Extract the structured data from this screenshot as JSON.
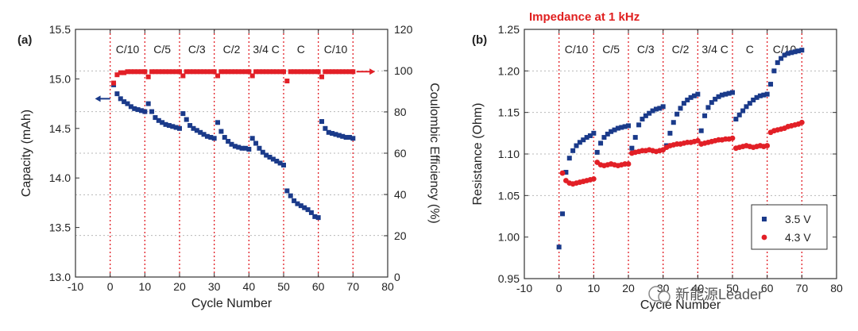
{
  "chart_data": [
    {
      "panel": "(a)",
      "type": "scatter",
      "xlabel": "Cycle Number",
      "ylabel": "Capacity (mAh)",
      "y2label": "Coulombic Efficiency (%)",
      "xlim": [
        -10,
        80
      ],
      "ylim": [
        13.0,
        15.5
      ],
      "y2lim": [
        0,
        120
      ],
      "xticks": [
        "-10",
        "0",
        "10",
        "20",
        "30",
        "40",
        "50",
        "60",
        "70",
        "80"
      ],
      "yticks": [
        "13.0",
        "13.5",
        "14.0",
        "14.5",
        "15.0",
        "15.5"
      ],
      "y2ticks": [
        "0",
        "20",
        "40",
        "60",
        "80",
        "100",
        "120"
      ],
      "grid_y": [
        13.42,
        13.83,
        14.25,
        14.67,
        15.08
      ],
      "regions": [
        "C/10",
        "C/5",
        "C/3",
        "C/2",
        "3/4 C",
        "C",
        "C/10"
      ],
      "region_bounds": [
        0,
        10,
        20,
        30,
        40,
        50,
        60,
        70
      ],
      "colors": {
        "capacity": "#1a3a8a",
        "efficiency": "#e21f26",
        "dotline": "#e21f26"
      },
      "series": [
        {
          "axis": "left",
          "x": [
            1,
            2,
            3,
            4,
            5,
            6,
            7,
            8,
            9,
            10,
            11,
            12,
            13,
            14,
            15,
            16,
            17,
            18,
            19,
            20,
            21,
            22,
            23,
            24,
            25,
            26,
            27,
            28,
            29,
            30,
            31,
            32,
            33,
            34,
            35,
            36,
            37,
            38,
            39,
            40,
            41,
            42,
            43,
            44,
            45,
            46,
            47,
            48,
            49,
            50,
            51,
            52,
            53,
            54,
            55,
            56,
            57,
            58,
            59,
            60,
            61,
            62,
            63,
            64,
            65,
            66,
            67,
            68,
            69,
            70
          ],
          "values": [
            14.94,
            14.85,
            14.8,
            14.77,
            14.75,
            14.72,
            14.7,
            14.69,
            14.68,
            14.67,
            14.75,
            14.67,
            14.61,
            14.58,
            14.56,
            14.54,
            14.53,
            14.52,
            14.51,
            14.5,
            14.65,
            14.59,
            14.53,
            14.5,
            14.48,
            14.46,
            14.44,
            14.42,
            14.41,
            14.4,
            14.56,
            14.47,
            14.41,
            14.37,
            14.34,
            14.32,
            14.31,
            14.3,
            14.3,
            14.29,
            14.4,
            14.35,
            14.3,
            14.26,
            14.23,
            14.21,
            14.19,
            14.17,
            14.15,
            14.13,
            13.87,
            13.82,
            13.77,
            13.74,
            13.72,
            13.7,
            13.68,
            13.65,
            13.61,
            13.6,
            14.57,
            14.5,
            14.46,
            14.45,
            14.44,
            14.43,
            14.42,
            14.41,
            14.41,
            14.4
          ]
        },
        {
          "axis": "right",
          "x": [
            1,
            2,
            3,
            4,
            5,
            6,
            7,
            8,
            9,
            10,
            11,
            12,
            13,
            14,
            15,
            16,
            17,
            18,
            19,
            20,
            21,
            22,
            23,
            24,
            25,
            26,
            27,
            28,
            29,
            30,
            31,
            32,
            33,
            34,
            35,
            36,
            37,
            38,
            39,
            40,
            41,
            42,
            43,
            44,
            45,
            46,
            47,
            48,
            49,
            50,
            51,
            52,
            53,
            54,
            55,
            56,
            57,
            58,
            59,
            60,
            61,
            62,
            63,
            64,
            65,
            66,
            67,
            68,
            69,
            70
          ],
          "values": [
            94,
            98,
            99,
            99,
            99.5,
            99.5,
            99.5,
            99.5,
            99.5,
            99.5,
            97,
            99.5,
            99.5,
            99.5,
            99.5,
            99.5,
            99.5,
            99.5,
            99.5,
            99.5,
            97.5,
            99.5,
            99.5,
            99.5,
            99.5,
            99.5,
            99.5,
            99.5,
            99.5,
            99.5,
            97.5,
            99.5,
            99.5,
            99.5,
            99.5,
            99.5,
            99.5,
            99.5,
            99.5,
            99.5,
            97.5,
            99.5,
            99.5,
            99.5,
            99.5,
            99.5,
            99.5,
            99.5,
            99.5,
            99.5,
            95,
            99.5,
            99.5,
            99.5,
            99.5,
            99.5,
            99.5,
            99.5,
            99.5,
            99.5,
            97,
            99.5,
            99.5,
            99.5,
            99.5,
            99.5,
            99.5,
            99.5,
            99.5,
            99.5
          ]
        }
      ]
    },
    {
      "panel": "(b)",
      "type": "scatter",
      "title": "Impedance at 1 kHz",
      "xlabel": "Cycle Number",
      "ylabel": "Resistance (Ohm)",
      "xlim": [
        -10,
        80
      ],
      "ylim": [
        0.95,
        1.25
      ],
      "xticks": [
        "-10",
        "0",
        "10",
        "20",
        "30",
        "40",
        "50",
        "60",
        "70",
        "80"
      ],
      "yticks": [
        "0.95",
        "1.00",
        "1.05",
        "1.10",
        "1.15",
        "1.20",
        "1.25"
      ],
      "grid_y": [
        1.05,
        1.1,
        1.15,
        1.2
      ],
      "regions": [
        "C/10",
        "C/5",
        "C/3",
        "C/2",
        "3/4 C",
        "C",
        "C/10"
      ],
      "region_bounds": [
        0,
        10,
        20,
        30,
        40,
        50,
        60,
        70
      ],
      "legend_position": "bottom-right",
      "colors": {
        "s35": "#1a3a8a",
        "s43": "#e21f26",
        "dotline": "#e21f26"
      },
      "series": [
        {
          "name": "3.5 V",
          "x": [
            0,
            1,
            2,
            3,
            4,
            5,
            6,
            7,
            8,
            9,
            10,
            11,
            12,
            13,
            14,
            15,
            16,
            17,
            18,
            19,
            20,
            21,
            22,
            23,
            24,
            25,
            26,
            27,
            28,
            29,
            30,
            31,
            32,
            33,
            34,
            35,
            36,
            37,
            38,
            39,
            40,
            41,
            42,
            43,
            44,
            45,
            46,
            47,
            48,
            49,
            50,
            51,
            52,
            53,
            54,
            55,
            56,
            57,
            58,
            59,
            60,
            61,
            62,
            63,
            64,
            65,
            66,
            67,
            68,
            69,
            70
          ],
          "values": [
            0.988,
            1.028,
            1.078,
            1.095,
            1.104,
            1.11,
            1.114,
            1.117,
            1.12,
            1.122,
            1.125,
            1.102,
            1.113,
            1.12,
            1.124,
            1.127,
            1.129,
            1.131,
            1.132,
            1.133,
            1.134,
            1.107,
            1.12,
            1.135,
            1.142,
            1.146,
            1.149,
            1.152,
            1.154,
            1.155,
            1.157,
            1.11,
            1.125,
            1.138,
            1.148,
            1.155,
            1.161,
            1.165,
            1.168,
            1.17,
            1.172,
            1.128,
            1.146,
            1.156,
            1.162,
            1.166,
            1.169,
            1.171,
            1.172,
            1.173,
            1.174,
            1.142,
            1.147,
            1.152,
            1.157,
            1.161,
            1.165,
            1.168,
            1.17,
            1.171,
            1.172,
            1.184,
            1.2,
            1.21,
            1.215,
            1.219,
            1.221,
            1.222,
            1.223,
            1.224,
            1.225
          ]
        },
        {
          "name": "4.3 V",
          "x": [
            1,
            2,
            3,
            4,
            5,
            6,
            7,
            8,
            9,
            10,
            11,
            12,
            13,
            14,
            15,
            16,
            17,
            18,
            19,
            20,
            21,
            22,
            23,
            24,
            25,
            26,
            27,
            28,
            29,
            30,
            31,
            32,
            33,
            34,
            35,
            36,
            37,
            38,
            39,
            40,
            41,
            42,
            43,
            44,
            45,
            46,
            47,
            48,
            49,
            50,
            51,
            52,
            53,
            54,
            55,
            56,
            57,
            58,
            59,
            60,
            61,
            62,
            63,
            64,
            65,
            66,
            67,
            68,
            69,
            70
          ],
          "values": [
            1.077,
            1.068,
            1.065,
            1.064,
            1.065,
            1.066,
            1.067,
            1.068,
            1.069,
            1.07,
            1.09,
            1.087,
            1.086,
            1.087,
            1.088,
            1.087,
            1.086,
            1.087,
            1.088,
            1.088,
            1.101,
            1.102,
            1.103,
            1.104,
            1.104,
            1.105,
            1.104,
            1.103,
            1.104,
            1.105,
            1.108,
            1.11,
            1.111,
            1.112,
            1.112,
            1.113,
            1.114,
            1.114,
            1.115,
            1.116,
            1.112,
            1.113,
            1.114,
            1.115,
            1.116,
            1.117,
            1.117,
            1.118,
            1.118,
            1.119,
            1.107,
            1.108,
            1.109,
            1.11,
            1.109,
            1.108,
            1.109,
            1.11,
            1.109,
            1.11,
            1.126,
            1.128,
            1.129,
            1.13,
            1.131,
            1.133,
            1.134,
            1.135,
            1.136,
            1.138
          ]
        }
      ]
    }
  ],
  "watermark": "新能源Leader"
}
